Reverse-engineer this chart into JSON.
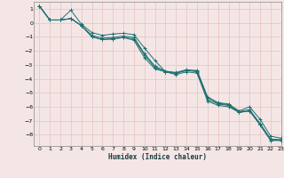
{
  "xlabel": "Humidex (Indice chaleur)",
  "xlim": [
    -0.5,
    23
  ],
  "ylim": [
    -8.8,
    1.5
  ],
  "yticks": [
    1,
    0,
    -1,
    -2,
    -3,
    -4,
    -5,
    -6,
    -7,
    -8
  ],
  "xticks": [
    0,
    1,
    2,
    3,
    4,
    5,
    6,
    7,
    8,
    9,
    10,
    11,
    12,
    13,
    14,
    15,
    16,
    17,
    18,
    19,
    20,
    21,
    22,
    23
  ],
  "background_color": "#f5e6e6",
  "grid_color": "#e8c8c8",
  "line_color": "#1a7070",
  "marker_color": "#1a7070",
  "series": [
    [
      1.2,
      0.2,
      0.2,
      0.9,
      -0.1,
      -0.7,
      -0.9,
      -0.8,
      -0.75,
      -0.85,
      -1.8,
      -2.7,
      -3.5,
      -3.6,
      -3.4,
      -3.4,
      -5.3,
      -5.7,
      -5.8,
      -6.3,
      -6.0,
      -6.9,
      -8.1,
      -8.25
    ],
    [
      1.2,
      0.2,
      0.2,
      0.3,
      -0.2,
      -0.9,
      -1.1,
      -1.05,
      -0.95,
      -1.05,
      -2.2,
      -3.1,
      -3.45,
      -3.55,
      -3.35,
      -3.45,
      -5.35,
      -5.75,
      -5.85,
      -6.35,
      -6.2,
      -7.2,
      -8.3,
      -8.35
    ],
    [
      1.2,
      0.2,
      0.2,
      0.3,
      -0.2,
      -1.0,
      -1.2,
      -1.15,
      -1.05,
      -1.15,
      -2.3,
      -3.2,
      -3.5,
      -3.6,
      -3.4,
      -3.5,
      -5.5,
      -5.8,
      -5.9,
      -6.4,
      -6.3,
      -7.3,
      -8.4,
      -8.4
    ],
    [
      1.2,
      0.2,
      0.2,
      0.3,
      -0.2,
      -1.0,
      -1.2,
      -1.15,
      -1.05,
      -1.25,
      -2.5,
      -3.3,
      -3.5,
      -3.7,
      -3.5,
      -3.6,
      -5.6,
      -5.9,
      -6.0,
      -6.4,
      -6.3,
      -7.3,
      -8.4,
      -8.4
    ]
  ],
  "x_series": [
    0,
    1,
    2,
    3,
    4,
    5,
    6,
    7,
    8,
    9,
    10,
    11,
    12,
    13,
    14,
    15,
    16,
    17,
    18,
    19,
    20,
    21,
    22,
    23
  ]
}
